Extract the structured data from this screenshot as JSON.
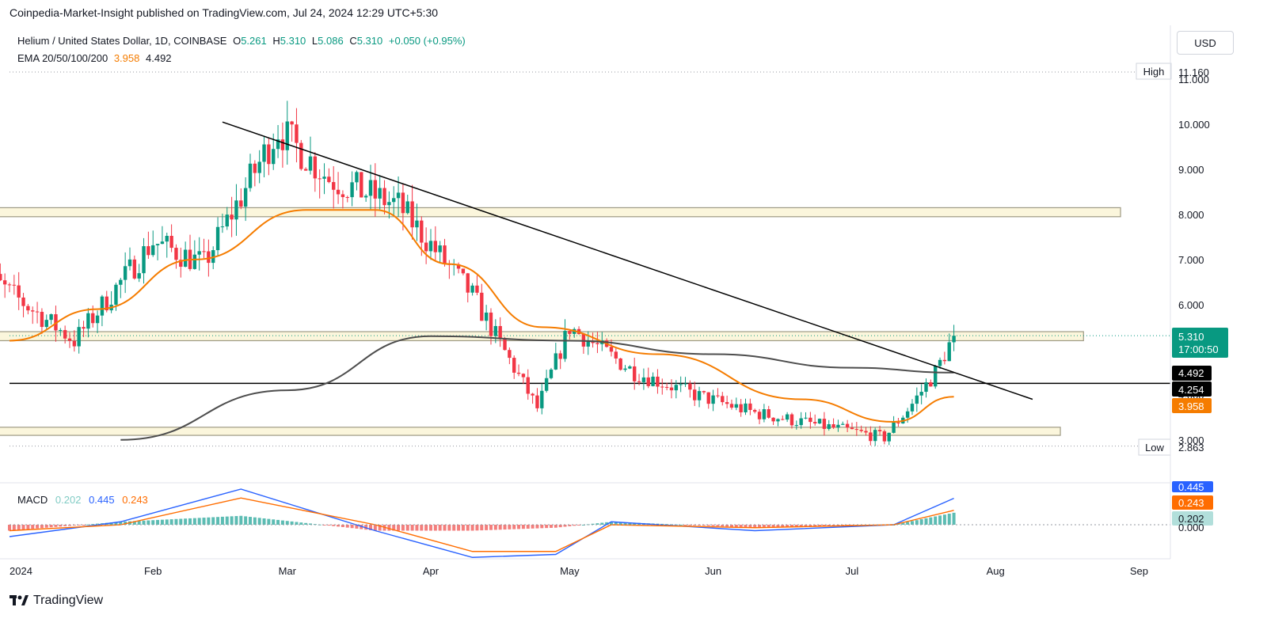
{
  "header": {
    "published_line": "Coinpedia-Market-Insight published on TradingView.com, Jul 24, 2024 12:29 UTC+5:30"
  },
  "legend": {
    "symbol": "Helium / United States Dollar, 1D, COINBASE",
    "open_label": "O",
    "open": "5.261",
    "high_label": "H",
    "high": "5.310",
    "low_label": "L",
    "low": "5.086",
    "close_label": "C",
    "close": "5.310",
    "change": "+0.050 (+0.95%)",
    "ema_label": "EMA 20/50/100/200",
    "ema_value1": "3.958",
    "ema_value2": "4.492"
  },
  "currency_button": "USD",
  "macd": {
    "label": "MACD",
    "hist": "0.202",
    "macd": "0.445",
    "signal": "0.243",
    "axis_labels": [
      "0.000"
    ]
  },
  "price_axis": {
    "ticks": [
      "11.000",
      "10.000",
      "9.000",
      "8.000",
      "7.000",
      "6.000",
      "5.000",
      "4.000",
      "3.000"
    ],
    "high_tag_label": "High",
    "high_tag_value": "11.160",
    "low_tag_label": "Low",
    "low_tag_value": "2.863",
    "last_price": "5.310",
    "countdown": "17:00:50",
    "ema_tag_gray": "4.492",
    "hline_tag": "4.254",
    "ema_tag_orange": "3.958"
  },
  "time_axis": [
    "2024",
    "Feb",
    "Mar",
    "Apr",
    "May",
    "Jun",
    "Jul",
    "Aug",
    "Sep"
  ],
  "footer": {
    "brand": "TradingView"
  },
  "colors": {
    "up": "#089981",
    "down": "#f23645",
    "ema_orange": "#f57c00",
    "ema_gray": "#4d4d4d",
    "zone_fill": "#fbf6dc",
    "zone_border": "#9e9a84",
    "macd_line": "#2962ff",
    "signal_line": "#ff6d00"
  },
  "chart_data": {
    "type": "candlestick",
    "y_range": [
      2.863,
      11.16
    ],
    "anchors": {
      "x": [
        "2023-12-25",
        "2024-01-15",
        "2024-02-01",
        "2024-02-12",
        "2024-02-28",
        "2024-03-10",
        "2024-03-25",
        "2024-04-10",
        "2024-04-24",
        "2024-05-01",
        "2024-05-15",
        "2024-05-28",
        "2024-06-10",
        "2024-06-25",
        "2024-07-08",
        "2024-07-14",
        "2024-07-19",
        "2024-07-23"
      ],
      "close": [
        6.8,
        5.2,
        7.4,
        6.9,
        9.9,
        8.8,
        8.2,
        6.2,
        3.7,
        5.5,
        4.5,
        4.0,
        3.6,
        3.3,
        3.05,
        3.8,
        4.5,
        5.31
      ]
    },
    "ema_20": {
      "x": [
        "2024-01-01",
        "2024-01-20",
        "2024-02-10",
        "2024-03-05",
        "2024-03-20",
        "2024-04-05",
        "2024-04-25",
        "2024-05-20",
        "2024-06-20",
        "2024-07-10",
        "2024-07-23"
      ],
      "y": [
        5.2,
        5.9,
        7.0,
        8.1,
        8.1,
        6.9,
        5.5,
        4.9,
        3.9,
        3.4,
        3.958
      ]
    },
    "ema_200": {
      "x": [
        "2024-01-25",
        "2024-03-01",
        "2024-04-01",
        "2024-05-01",
        "2024-06-01",
        "2024-07-01",
        "2024-07-23"
      ],
      "y": [
        3.0,
        4.1,
        5.3,
        5.2,
        4.9,
        4.6,
        4.492
      ]
    },
    "trendline": {
      "x": [
        "2024-02-16",
        "2024-08-09"
      ],
      "y": [
        10.05,
        3.9
      ]
    },
    "horizontal_line": {
      "y": 4.254
    },
    "zones": [
      {
        "x": [
          "2023-12-25",
          "2024-08-28"
        ],
        "y": [
          7.95,
          8.15
        ]
      },
      {
        "x": [
          "2023-12-25",
          "2024-08-20"
        ],
        "y": [
          5.2,
          5.4
        ]
      },
      {
        "x": [
          "2023-12-25",
          "2024-08-15"
        ],
        "y": [
          3.1,
          3.28
        ]
      }
    ],
    "macd_series": {
      "x": [
        "2024-01-01",
        "2024-01-25",
        "2024-02-20",
        "2024-03-20",
        "2024-04-10",
        "2024-04-28",
        "2024-05-10",
        "2024-06-10",
        "2024-07-10",
        "2024-07-23"
      ],
      "macd": [
        -0.2,
        0.05,
        0.6,
        -0.1,
        -0.55,
        -0.5,
        0.05,
        -0.1,
        0.0,
        0.445
      ],
      "signal": [
        -0.1,
        0.0,
        0.45,
        0.0,
        -0.45,
        -0.45,
        0.0,
        -0.05,
        0.0,
        0.243
      ]
    }
  }
}
